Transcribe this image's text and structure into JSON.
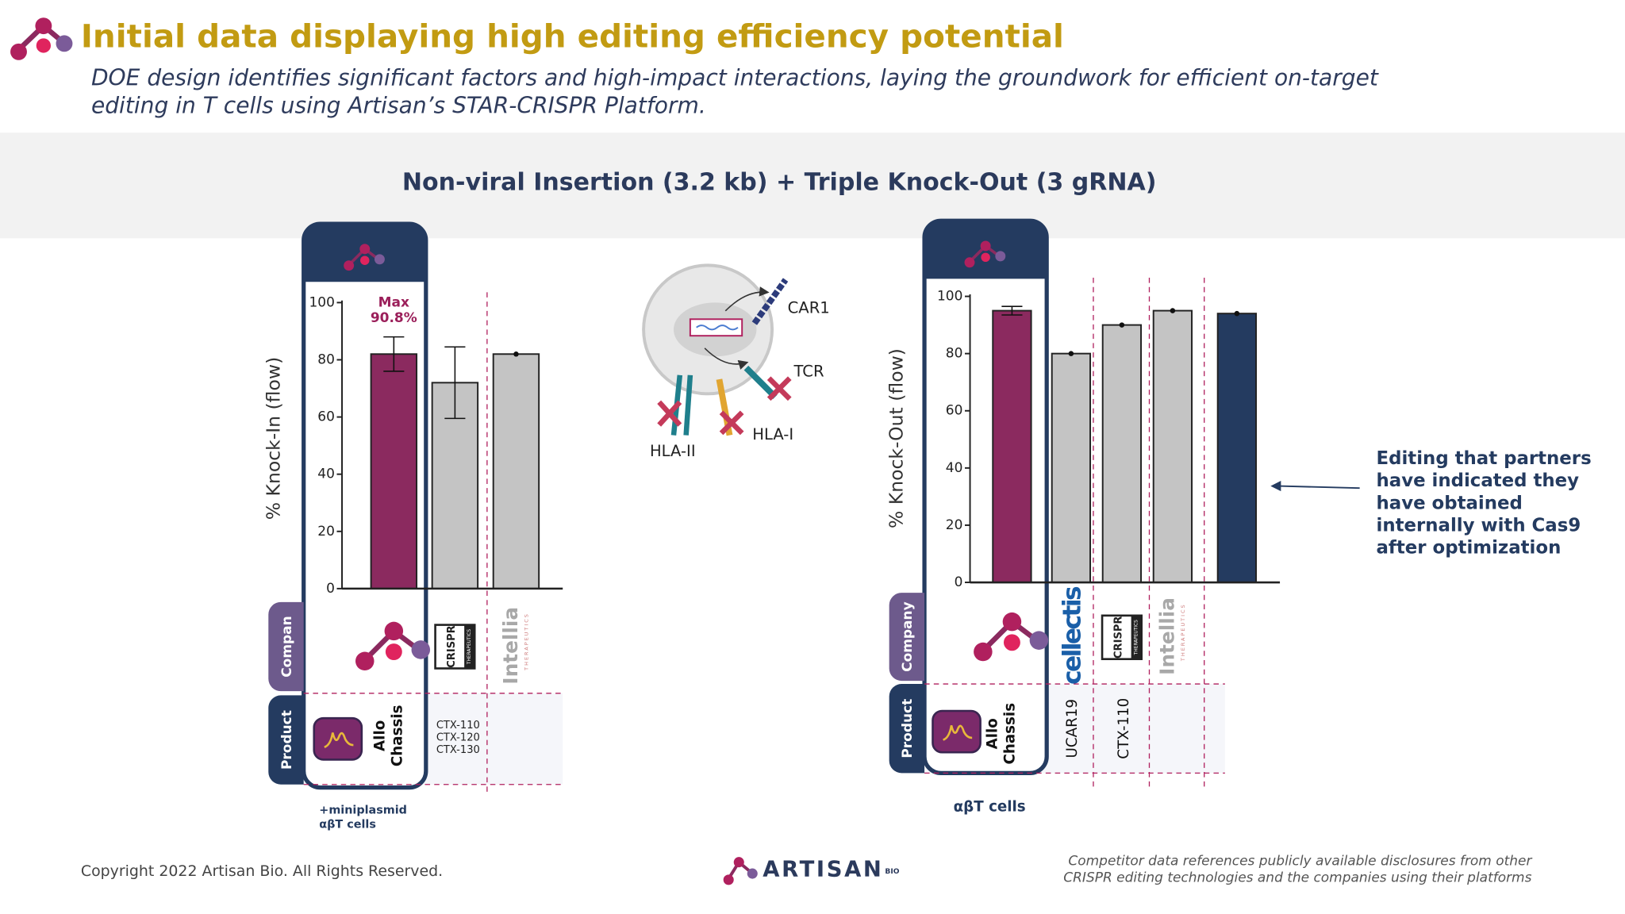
{
  "header": {
    "title": "Initial data displaying high editing efficiency potential",
    "subtitle": [
      "DOE design identifies significant factors and high-impact interactions, laying the groundwork for efficient on-target",
      "editing in T cells using Artisan’s STAR-CRISPR Platform."
    ],
    "section_title": "Non-viral Insertion (3.2 kb) + Triple Knock-Out (3 gRNA)"
  },
  "chart_data": [
    {
      "type": "bar",
      "y_label": "% Knock-In (flow)",
      "ylim": [
        0,
        100
      ],
      "yticks": [
        0,
        20,
        40,
        60,
        80,
        100
      ],
      "values": [
        82,
        72,
        82
      ],
      "errors": [
        6,
        12.5,
        null
      ],
      "colors": [
        "#8b2a5f",
        "#c4c4c4",
        "#c4c4c4"
      ],
      "annotation": [
        "Max",
        "90.8%"
      ],
      "row_labels": [
        "Compan",
        "Product"
      ],
      "company_logos": [
        null,
        {
          "lines": [
            "CRISPR",
            "THERAPEUTICS"
          ]
        },
        {
          "lines": [
            "Intellia",
            "THERAPEUTICS"
          ]
        }
      ],
      "products": [
        [
          "Allo",
          "Chassis"
        ],
        [
          "CTX-110",
          "CTX-120",
          "CTX-130"
        ],
        null
      ],
      "footnote": [
        "+miniplasmid",
        "αβT cells"
      ]
    },
    {
      "type": "bar",
      "y_label": "% Knock-Out (flow)",
      "ylim": [
        0,
        100
      ],
      "yticks": [
        0,
        20,
        40,
        60,
        80,
        100
      ],
      "values": [
        95,
        80,
        90,
        95,
        94
      ],
      "errors": [
        1.5,
        null,
        null,
        null,
        null
      ],
      "colors": [
        "#8b2a5f",
        "#c4c4c4",
        "#c4c4c4",
        "#c4c4c4",
        "#243b60"
      ],
      "row_labels": [
        "Company",
        "Product"
      ],
      "company_logos": [
        null,
        {
          "lines": [
            "cellectis"
          ]
        },
        {
          "lines": [
            "CRISPR",
            "THERAPEUTICS"
          ]
        },
        {
          "lines": [
            "Intellia",
            "THERAPEUTICS"
          ]
        },
        null
      ],
      "products": [
        [
          "Allo",
          "Chassis"
        ],
        [
          "UCAR19"
        ],
        [
          "CTX-110"
        ],
        null,
        null
      ],
      "footnote": [
        "αβT cells"
      ],
      "note": [
        "Editing that partners",
        "have indicated they",
        "have obtained",
        "internally with Cas9",
        "after optimization"
      ]
    }
  ],
  "diagram": {
    "labels": [
      "CAR1",
      "TCR",
      "HLA-I",
      "HLA-II"
    ]
  },
  "footer": {
    "copyright": "Copyright 2022 Artisan Bio. All Rights Reserved.",
    "brand": "ARTISAN",
    "brand_suffix": "BIO",
    "disclaimer": [
      "Competitor data references publicly available disclosures from other",
      "CRISPR editing technologies and the companies using their platforms"
    ]
  }
}
